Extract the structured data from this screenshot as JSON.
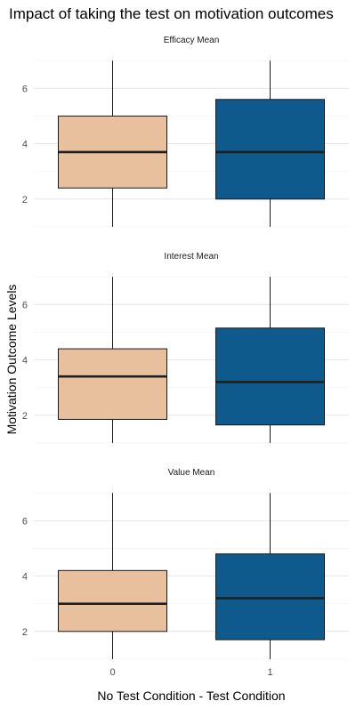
{
  "chart_data": {
    "type": "boxplot",
    "title": "Impact of taking the test on motivation outcomes",
    "xlabel": "No Test Condition - Test Condition",
    "ylabel": "Motivation Outcome Levels",
    "categories": [
      "0",
      "1"
    ],
    "fill_colors": [
      "#e8c09e",
      "#0f5a8c"
    ],
    "ylim": [
      0.9,
      7.2
    ],
    "yticks": [
      2,
      4,
      6
    ],
    "grid": true,
    "legend": "none",
    "facets": [
      {
        "name": "Efficacy Mean",
        "boxes": [
          {
            "category": "0",
            "min": 1.0,
            "q1": 2.4,
            "median": 3.7,
            "q3": 5.0,
            "max": 7.0
          },
          {
            "category": "1",
            "min": 1.0,
            "q1": 2.0,
            "median": 3.7,
            "q3": 5.6,
            "max": 7.0
          }
        ]
      },
      {
        "name": "Interest Mean",
        "boxes": [
          {
            "category": "0",
            "min": 1.0,
            "q1": 1.85,
            "median": 3.4,
            "q3": 4.4,
            "max": 7.0
          },
          {
            "category": "1",
            "min": 1.0,
            "q1": 1.65,
            "median": 3.2,
            "q3": 5.15,
            "max": 7.0
          }
        ]
      },
      {
        "name": "Value Mean",
        "boxes": [
          {
            "category": "0",
            "min": 1.0,
            "q1": 2.0,
            "median": 3.0,
            "q3": 4.2,
            "max": 7.0
          },
          {
            "category": "1",
            "min": 1.0,
            "q1": 1.7,
            "median": 3.2,
            "q3": 4.8,
            "max": 7.0
          }
        ]
      }
    ]
  }
}
